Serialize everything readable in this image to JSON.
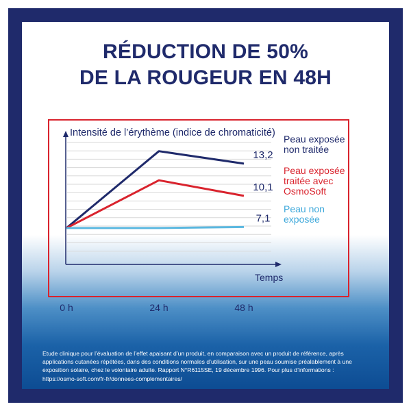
{
  "title": {
    "line1": "RÉDUCTION DE 50%",
    "line2": "DE LA ROUGEUR EN 48H"
  },
  "colors": {
    "frame": "#1f2a6b",
    "accent_red": "#d9232d",
    "series_navy": "#1f2a6b",
    "series_red": "#d9232d",
    "series_light_blue": "#5bb8e0"
  },
  "chart_data": {
    "type": "line",
    "ylabel": "Intensité de l’érythème (indice de chromaticité)",
    "xlabel": "Temps",
    "x": [
      "0 h",
      "24 h",
      "48 h"
    ],
    "grid": true,
    "series": [
      {
        "name_lines": [
          "Peau exposée",
          "non traitée"
        ],
        "values": [
          7.0,
          14.4,
          13.2
        ],
        "end_label": "13,2",
        "color": "#1f2a6b"
      },
      {
        "name_lines": [
          "Peau exposée",
          "traitée avec",
          "OsmoSoft"
        ],
        "values": [
          7.0,
          11.6,
          10.1
        ],
        "end_label": "10,1",
        "color": "#d9232d"
      },
      {
        "name_lines": [
          "Peau non",
          "exposée"
        ],
        "values": [
          7.0,
          7.0,
          7.1
        ],
        "end_label": "7,1",
        "color": "#5bb8e0"
      }
    ]
  },
  "footnote": {
    "line1": "Etude clinique pour l’évaluation de l’effet apaisant d’un produit, en comparaison avec un produit de référence, après",
    "line2": "applications cutanées répétées, dans des conditions normales d’utilisation, sur une peau soumise préalablement à une",
    "line3": "exposition solaire, chez le volontaire adulte. Rapport N°R6115SE, 19 décembre 1996. Pour plus d’informations :",
    "line4": "https://osmo-soft.com/fr-fr/donnees-complementaires/"
  }
}
